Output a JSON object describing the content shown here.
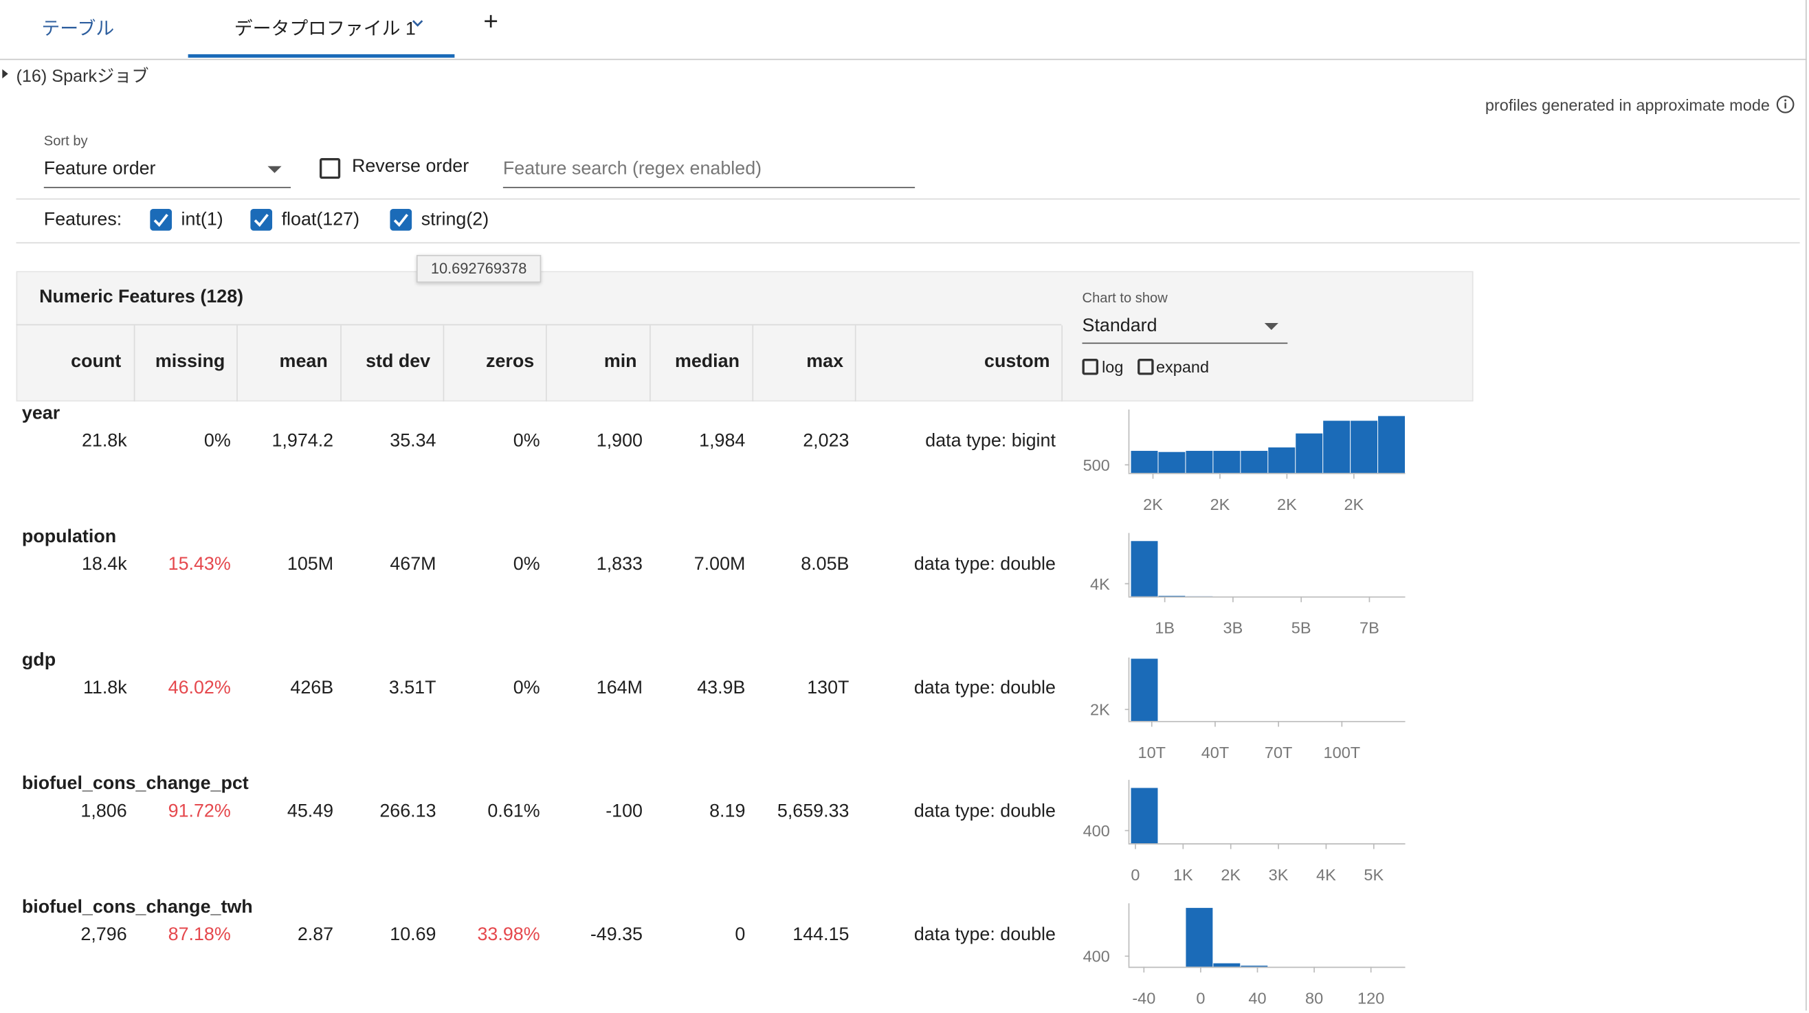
{
  "tabs": [
    "テーブル",
    "データプロファイル 1",
    "+"
  ],
  "spark_jobs": "(16) Sparkジョブ",
  "mode_note": "profiles generated in approximate mode",
  "sort": {
    "label": "Sort by",
    "value": "Feature order"
  },
  "reverse": "Reverse order",
  "search_placeholder": "Feature search (regex enabled)",
  "features": {
    "label": "Features:",
    "types": [
      "int(1)",
      "float(127)",
      "string(2)"
    ]
  },
  "tooltip": "10.692769378",
  "table": {
    "title": "Numeric Features (128)",
    "columns": [
      "count",
      "missing",
      "mean",
      "std dev",
      "zeros",
      "min",
      "median",
      "max",
      "custom"
    ],
    "chart_label": "Chart to show",
    "chart_value": "Standard",
    "options": [
      "log",
      "expand"
    ],
    "alert_color": "#e5484d",
    "bar_color": "#1b6bb8",
    "rows": [
      {
        "name": "year",
        "stats": [
          "21.8k",
          "0%",
          "1,974.2",
          "35.34",
          "0%",
          "1,900",
          "1,984",
          "2,023",
          "data type: bigint"
        ],
        "alerts": [],
        "hist": {
          "xlim": [
            1900,
            2023
          ],
          "ylim": [
            0,
            3900
          ],
          "yticks": [
            500
          ],
          "xticks": [
            {
              "value": 1910,
              "label": "2K"
            },
            {
              "value": 1940,
              "label": "2K"
            },
            {
              "value": 1970,
              "label": "2K"
            },
            {
              "value": 2000,
              "label": "2K"
            }
          ],
          "values": [
            1360,
            1290,
            1360,
            1360,
            1360,
            1570,
            2430,
            3210,
            3210,
            3500
          ]
        }
      },
      {
        "name": "population",
        "stats": [
          "18.4k",
          "15.43%",
          "105M",
          "467M",
          "0%",
          "1,833",
          "7.00M",
          "8.05B",
          "data type: double"
        ],
        "alerts": [
          "missing"
        ],
        "hist": {
          "xlim": [
            0,
            8050000000
          ],
          "ylim": [
            0,
            20000
          ],
          "yticks": [
            {
              "value": 4000,
              "label": "4K"
            }
          ],
          "xticks": [
            {
              "value": 1000000000,
              "label": "1B"
            },
            {
              "value": 3000000000,
              "label": "3B"
            },
            {
              "value": 5000000000,
              "label": "5B"
            },
            {
              "value": 7000000000,
              "label": "7B"
            }
          ],
          "values": [
            17450,
            200,
            50,
            0,
            0,
            0,
            0,
            0,
            0,
            0
          ]
        }
      },
      {
        "name": "gdp",
        "stats": [
          "11.8k",
          "46.02%",
          "426B",
          "3.51T",
          "0%",
          "164M",
          "43.9B",
          "130T",
          "data type: double"
        ],
        "alerts": [
          "missing"
        ],
        "hist": {
          "xlim": [
            0,
            130000000000000
          ],
          "ylim": [
            0,
            11000
          ],
          "yticks": [
            {
              "value": 2000,
              "label": "2K"
            }
          ],
          "xticks": [
            {
              "value": 10000000000000,
              "label": "10T"
            },
            {
              "value": 40000000000000,
              "label": "40T"
            },
            {
              "value": 70000000000000,
              "label": "70T"
            },
            {
              "value": 100000000000000,
              "label": "100T"
            }
          ],
          "values": [
            10800,
            0,
            0,
            0,
            0,
            0,
            0,
            0,
            0,
            0
          ]
        }
      },
      {
        "name": "biofuel_cons_change_pct",
        "stats": [
          "1,806",
          "91.72%",
          "45.49",
          "266.13",
          "0.61%",
          "-100",
          "8.19",
          "5,659.33",
          "data type: double"
        ],
        "alerts": [
          "missing"
        ],
        "hist": {
          "xlim": [
            -100,
            5659.33
          ],
          "ylim": [
            0,
            2000
          ],
          "yticks": [
            400
          ],
          "xticks": [
            0,
            {
              "value": 1000,
              "label": "1K"
            },
            {
              "value": 2000,
              "label": "2K"
            },
            {
              "value": 3000,
              "label": "3K"
            },
            {
              "value": 4000,
              "label": "4K"
            },
            {
              "value": 5000,
              "label": "5K"
            }
          ],
          "values": [
            1745,
            0,
            0,
            0,
            0,
            0,
            0,
            0,
            0,
            0
          ]
        }
      },
      {
        "name": "biofuel_cons_change_twh",
        "stats": [
          "2,796",
          "87.18%",
          "2.87",
          "10.69",
          "33.98%",
          "-49.35",
          "0",
          "144.15",
          "data type: double"
        ],
        "alerts": [
          "missing",
          "zeros"
        ],
        "hist": {
          "xlim": [
            -49.35,
            144.15
          ],
          "ylim": [
            0,
            2400
          ],
          "yticks": [
            400
          ],
          "xticks": [
            -40,
            0,
            40,
            80,
            120
          ],
          "values": [
            0,
            0,
            2225,
            130,
            40,
            0,
            0,
            0,
            0,
            0
          ]
        }
      }
    ]
  }
}
